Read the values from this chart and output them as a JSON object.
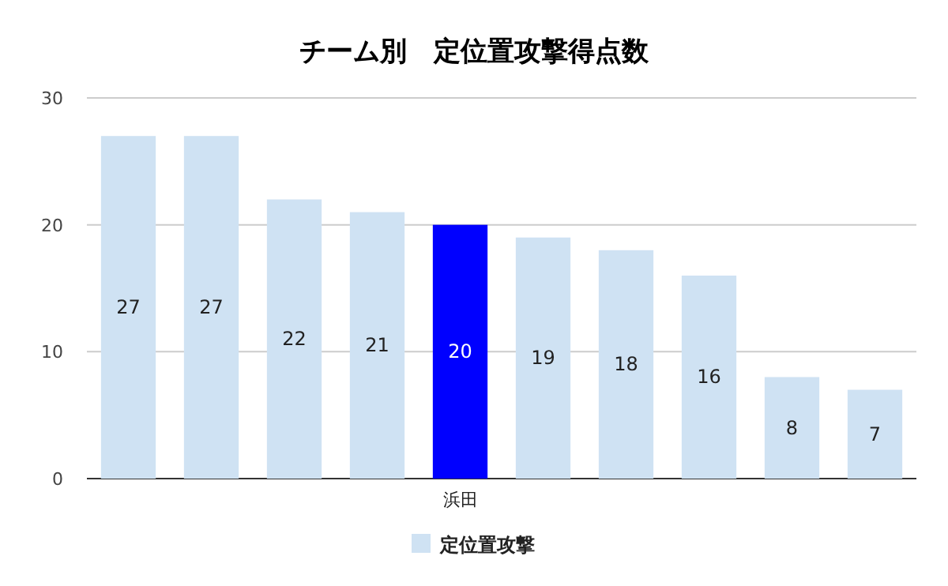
{
  "chart_data": {
    "type": "bar",
    "title": "チーム別　定位置攻撃得点数",
    "categories": [
      null,
      null,
      null,
      null,
      "浜田",
      null,
      null,
      null,
      null,
      null
    ],
    "series": [
      {
        "name": "定位置攻撃",
        "color": "#cfe2f3",
        "values": [
          27,
          27,
          22,
          21,
          20,
          19,
          18,
          16,
          8,
          7
        ],
        "colors": [
          "#cfe2f3",
          "#cfe2f3",
          "#cfe2f3",
          "#cfe2f3",
          "#0000ff",
          "#cfe2f3",
          "#cfe2f3",
          "#cfe2f3",
          "#cfe2f3",
          "#cfe2f3"
        ]
      }
    ],
    "ylim": [
      0,
      30
    ],
    "yticks": [
      0,
      10,
      20,
      30
    ],
    "grid": "y",
    "data_labels": true,
    "legend": "bottom"
  }
}
